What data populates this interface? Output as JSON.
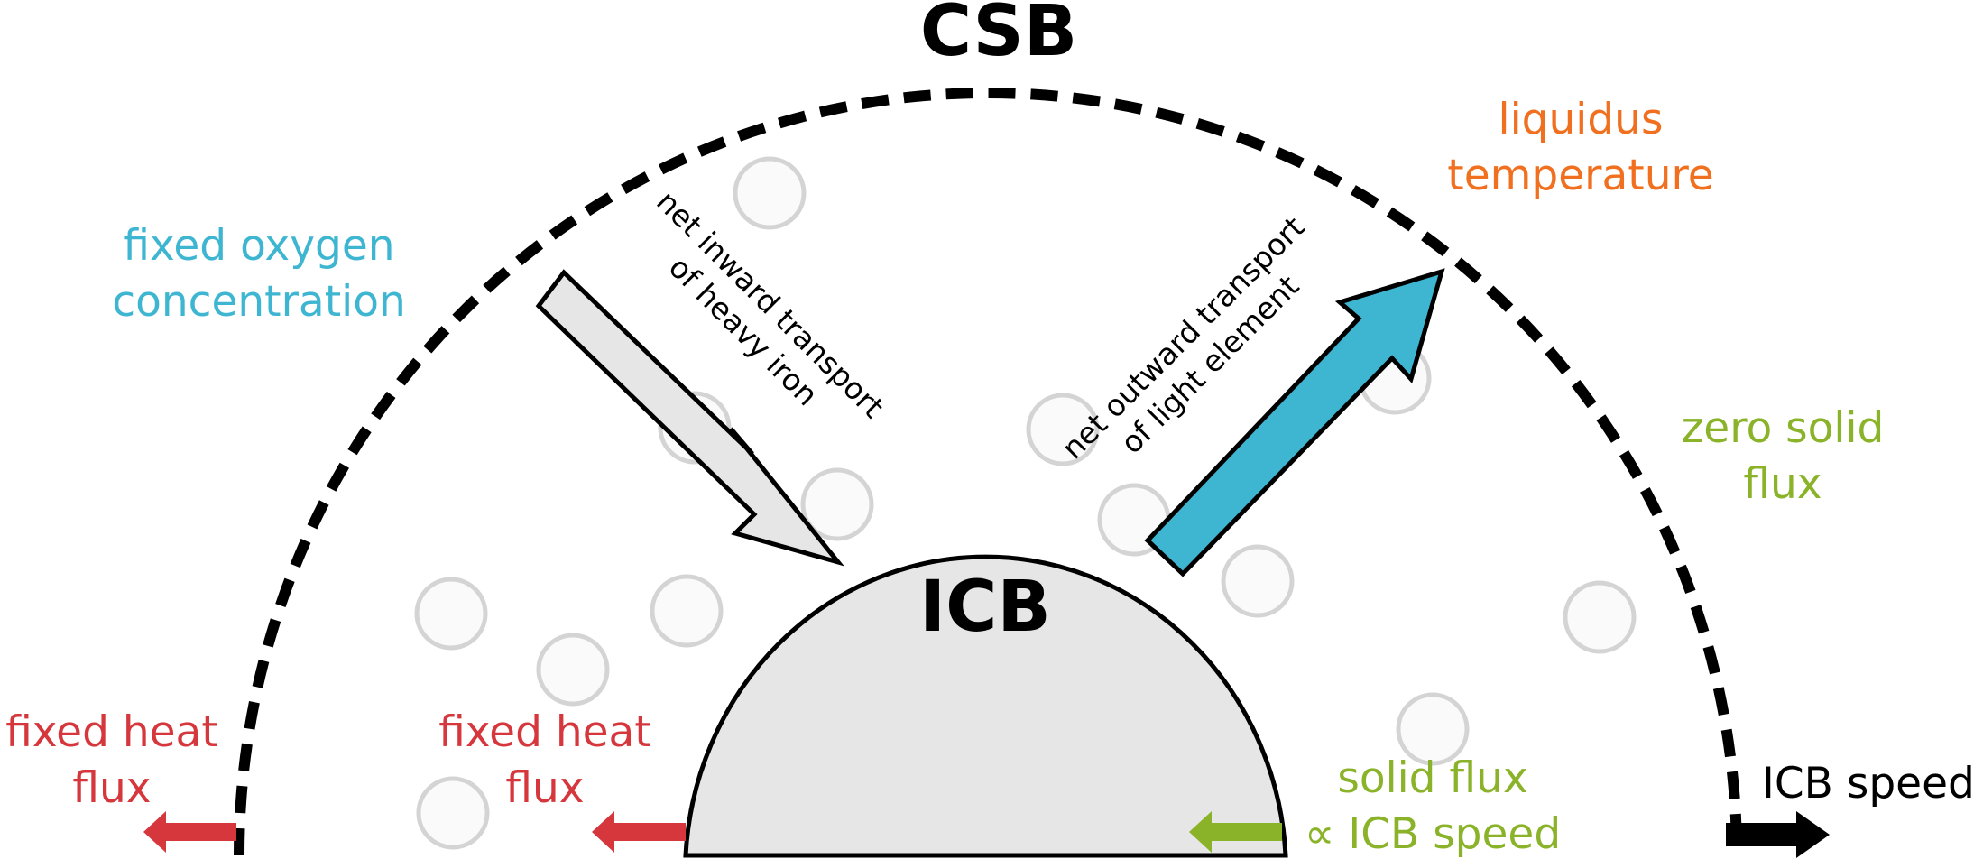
{
  "labels": {
    "csb": "CSB",
    "icb": "ICB",
    "liquidus_line1": "liquidus",
    "liquidus_line2": "temperature",
    "oxygen_line1": "fixed oxygen",
    "oxygen_line2": "concentration",
    "zero_solid_line1": "zero solid",
    "zero_solid_line2": "flux",
    "heat_flux_outer_line1": "fixed heat",
    "heat_flux_outer_line2": "flux",
    "heat_flux_inner_line1": "fixed heat",
    "heat_flux_inner_line2": "flux",
    "solid_flux_line1": "solid flux",
    "solid_flux_line2": "∝ ICB speed",
    "icb_speed": "ICB speed",
    "inward_line1": "net inward transport",
    "inward_line2": "of heavy iron",
    "outward_line1": "net outward transport",
    "outward_line2": "of light element"
  },
  "colors": {
    "orange": "#f07020",
    "cyan": "#3fb6d1",
    "green": "#8ab32a",
    "red": "#d5373c",
    "black": "#000000",
    "inner_core_fill": "#e6e6e6",
    "particle_fill": "#fafafa",
    "particle_stroke": "#d4d4d4"
  }
}
